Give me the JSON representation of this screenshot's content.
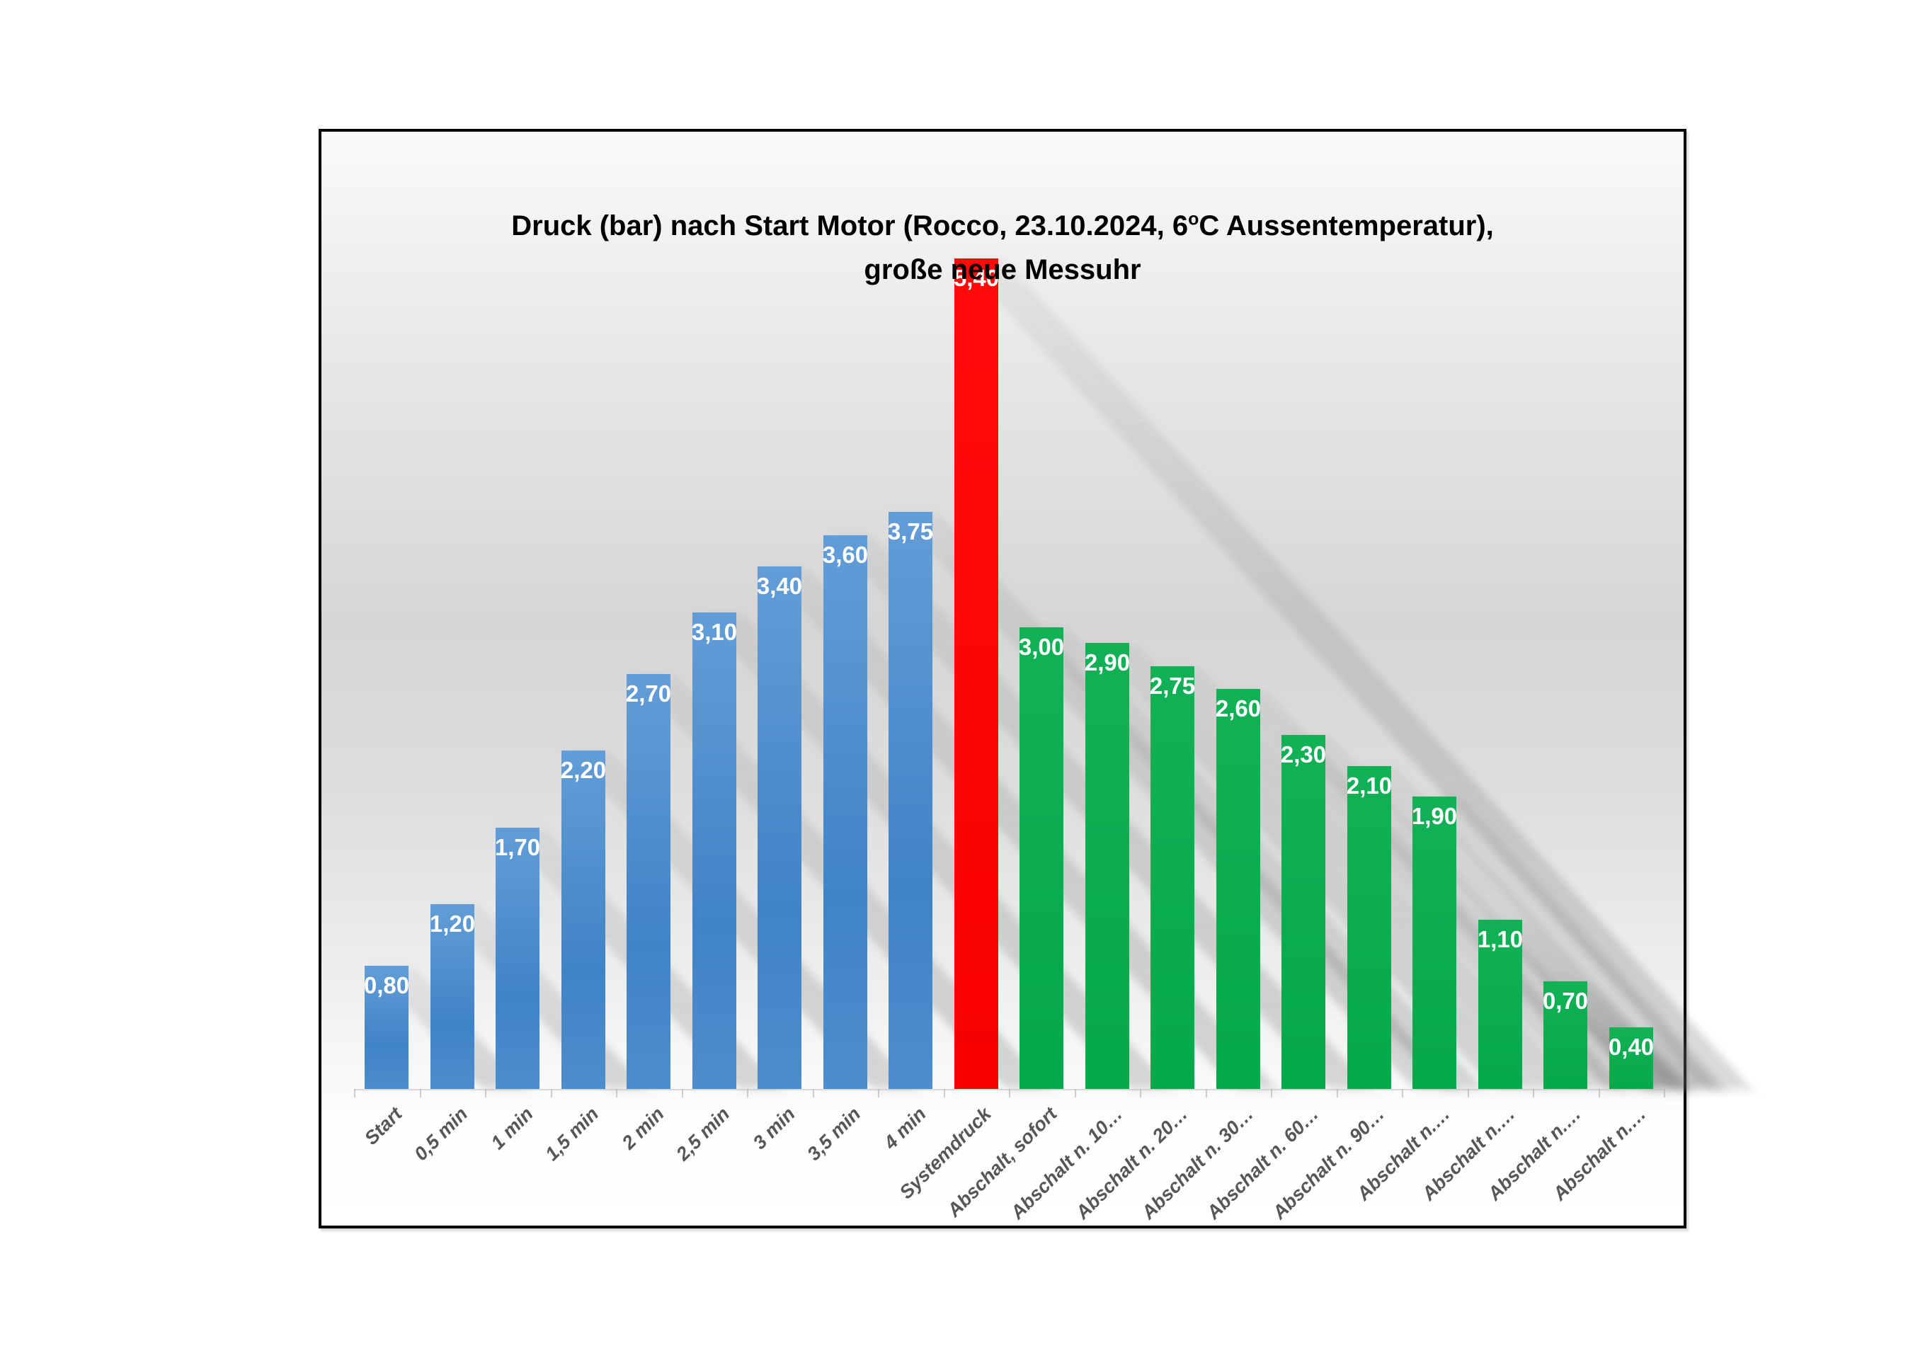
{
  "chart": {
    "title": {
      "part1": "Druck (bar) nach Start Motor (Rocco, 23.10.2024, 6",
      "sup": "o",
      "part2": "C Aussentemperatur),",
      "line2": "große neue Messuhr"
    },
    "style": {
      "frame_border_color": "#000000",
      "blue_bar_color": "#4586C8",
      "green_bar_color": "#05A84B",
      "red_bar_color": "#FF0000",
      "value_label_color": "#FFFFFF",
      "axis_label_color": "#565656",
      "plot_background_top": "#D6D6D6",
      "plot_background_bottom": "#FFFFFF"
    }
  },
  "chart_data": {
    "type": "bar",
    "title": "Druck (bar) nach Start Motor (Rocco, 23.10.2024, 6°C Aussentemperatur), große neue Messuhr",
    "xlabel": "",
    "ylabel": "",
    "ylim": [
      0,
      5.4
    ],
    "grid": false,
    "legend": "none",
    "value_label_position": "inside-end",
    "categories": [
      "Start",
      "0,5 min",
      "1 min",
      "1,5 min",
      "2 min",
      "2,5 min",
      "3 min",
      "3,5 min",
      "4 min",
      "Systemdruck",
      "Abschalt, sofort",
      "Abschalt n. 10…",
      "Abschalt n. 20…",
      "Abschalt n. 30…",
      "Abschalt n. 60…",
      "Abschalt n. 90…",
      "Abschalt n.…",
      "Abschalt n.…",
      "Abschalt n.…",
      "Abschalt n.…"
    ],
    "values": [
      0.8,
      1.2,
      1.7,
      2.2,
      2.7,
      3.1,
      3.4,
      3.6,
      3.75,
      5.4,
      3.0,
      2.9,
      2.75,
      2.6,
      2.3,
      2.1,
      1.9,
      1.1,
      0.7,
      0.4
    ],
    "value_labels": [
      "0,80",
      "1,20",
      "1,70",
      "2,20",
      "2,70",
      "3,10",
      "3,40",
      "3,60",
      "3,75",
      "5,40",
      "3,00",
      "2,90",
      "2,75",
      "2,60",
      "2,30",
      "2,10",
      "1,90",
      "1,10",
      "0,70",
      "0,40"
    ],
    "bar_colors": [
      "blue",
      "blue",
      "blue",
      "blue",
      "blue",
      "blue",
      "blue",
      "blue",
      "blue",
      "red",
      "green",
      "green",
      "green",
      "green",
      "green",
      "green",
      "green",
      "green",
      "green",
      "green"
    ]
  }
}
